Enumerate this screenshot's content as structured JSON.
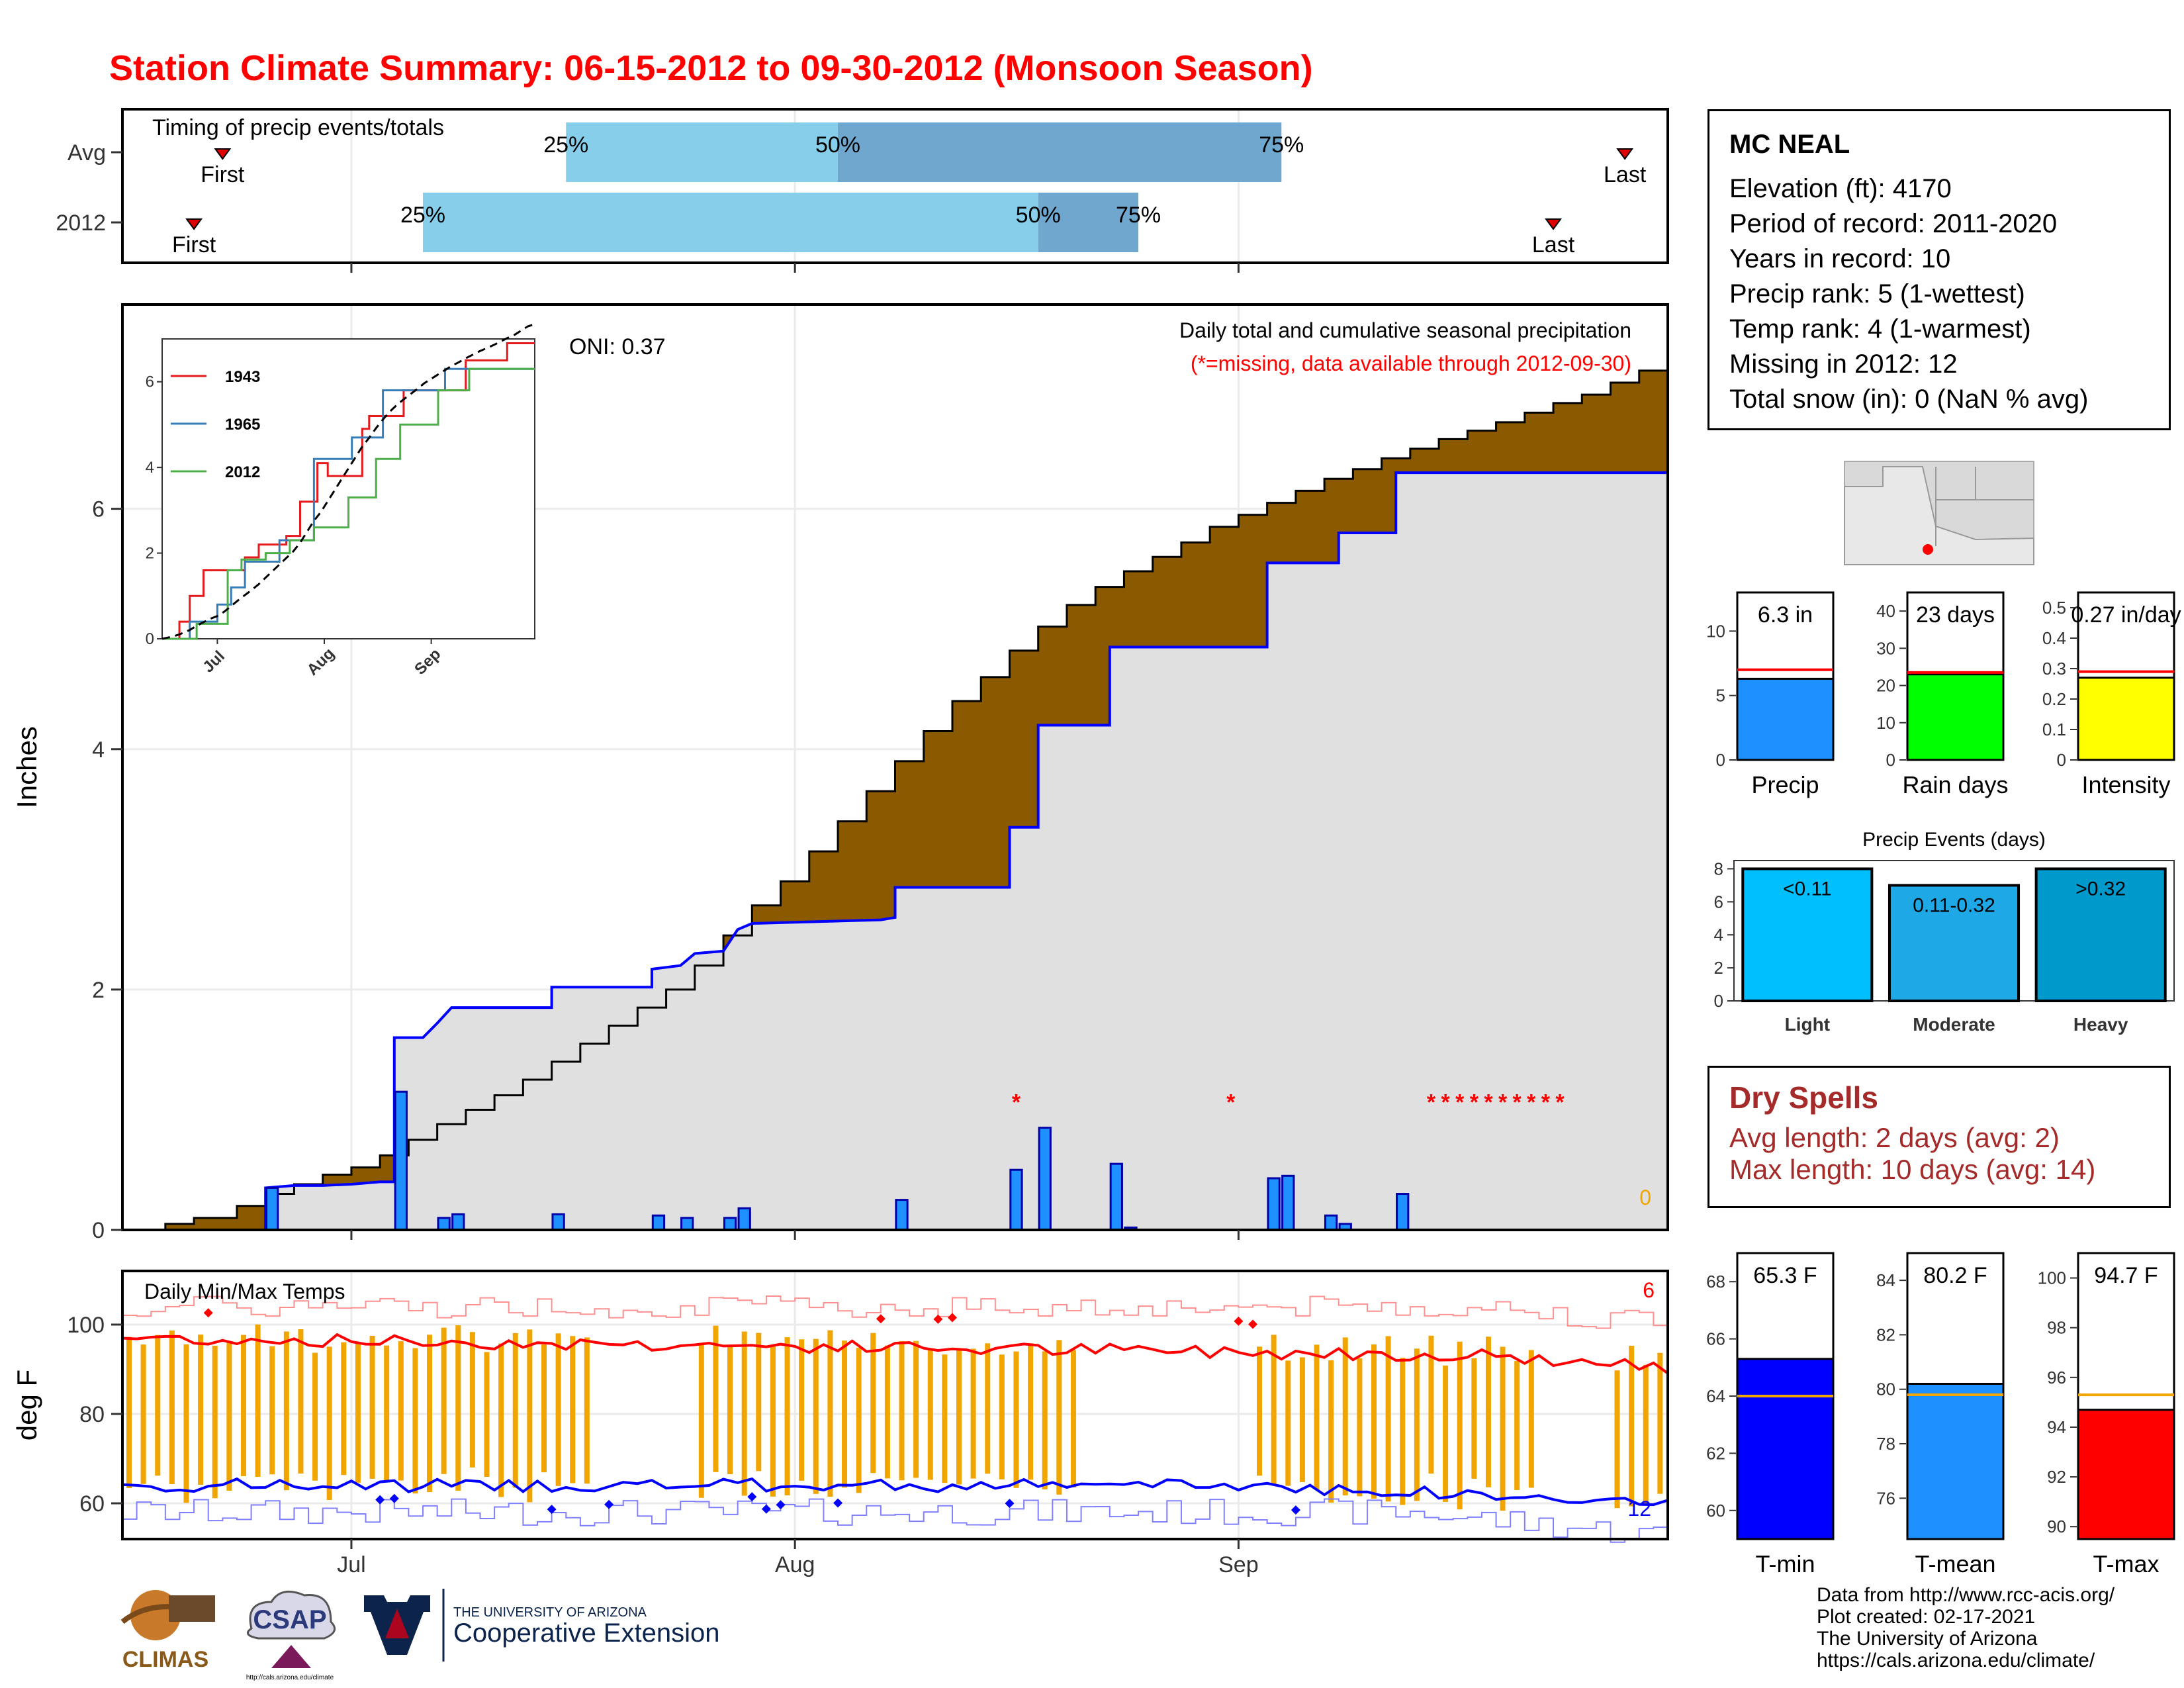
{
  "page": {
    "title": "Station Climate Summary: 06-15-2012 to 09-30-2012 (Monsoon Season)"
  },
  "colors": {
    "title_red": "#ff0000",
    "light_blue": "#87ceeb",
    "mid_blue": "#6fa7cf",
    "gray_fill": "#e0e0e0",
    "brown_fill": "#8b5a00",
    "green_fill": "#008000",
    "bar_blue": "#1e90ff",
    "outline_blue": "#0000ff",
    "orange": "#f0a500",
    "dry_red": "#a52a2a"
  },
  "timing_panel": {
    "label": "Timing of precip events/totals",
    "rows": [
      {
        "name": "Avg",
        "first_label": "First",
        "last_label": "Last",
        "first_day": 7,
        "last_day": 105,
        "q25_day": 31,
        "q50_day": 50,
        "q75_day": 81,
        "q25_label": "25%",
        "q50_label": "50%",
        "q75_label": "75%"
      },
      {
        "name": "2012",
        "first_label": "First",
        "last_label": "Last",
        "first_day": 5,
        "last_day": 100,
        "q25_day": 21,
        "q50_day": 64,
        "q75_day": 71,
        "q25_label": "25%",
        "q50_label": "50%",
        "q75_label": "75%"
      }
    ]
  },
  "chart_data": [
    {
      "type": "area",
      "name": "precip_main",
      "title": "Daily total and cumulative seasonal precipitation",
      "subtitle": "(*=missing, data available through 2012-09-30)",
      "annotation": "ONI: 0.37",
      "ylabel": "Inches",
      "ylim": [
        0,
        7.7
      ],
      "xlim_days": [
        0,
        108
      ],
      "y_ticks": [
        0,
        2,
        4,
        6
      ],
      "x_ticks": [
        {
          "label": "Jul",
          "day": 16
        },
        {
          "label": "Aug",
          "day": 47
        },
        {
          "label": "Sep",
          "day": 78
        }
      ],
      "corner_value": "0",
      "avg_cumulative": [
        [
          0,
          0
        ],
        [
          3,
          0.05
        ],
        [
          5,
          0.1
        ],
        [
          8,
          0.2
        ],
        [
          10,
          0.3
        ],
        [
          12,
          0.38
        ],
        [
          14,
          0.46
        ],
        [
          16,
          0.52
        ],
        [
          18,
          0.62
        ],
        [
          20,
          0.75
        ],
        [
          22,
          0.88
        ],
        [
          24,
          1.0
        ],
        [
          26,
          1.12
        ],
        [
          28,
          1.25
        ],
        [
          30,
          1.4
        ],
        [
          32,
          1.55
        ],
        [
          34,
          1.7
        ],
        [
          36,
          1.85
        ],
        [
          38,
          2.0
        ],
        [
          40,
          2.2
        ],
        [
          42,
          2.45
        ],
        [
          44,
          2.7
        ],
        [
          46,
          2.9
        ],
        [
          48,
          3.15
        ],
        [
          50,
          3.4
        ],
        [
          52,
          3.65
        ],
        [
          54,
          3.9
        ],
        [
          56,
          4.15
        ],
        [
          58,
          4.4
        ],
        [
          60,
          4.6
        ],
        [
          62,
          4.82
        ],
        [
          64,
          5.02
        ],
        [
          66,
          5.2
        ],
        [
          68,
          5.35
        ],
        [
          70,
          5.48
        ],
        [
          72,
          5.6
        ],
        [
          74,
          5.72
        ],
        [
          76,
          5.85
        ],
        [
          78,
          5.95
        ],
        [
          80,
          6.05
        ],
        [
          82,
          6.15
        ],
        [
          84,
          6.25
        ],
        [
          86,
          6.33
        ],
        [
          88,
          6.42
        ],
        [
          90,
          6.5
        ],
        [
          92,
          6.58
        ],
        [
          94,
          6.65
        ],
        [
          96,
          6.72
        ],
        [
          98,
          6.8
        ],
        [
          100,
          6.88
        ],
        [
          102,
          6.95
        ],
        [
          104,
          7.05
        ],
        [
          106,
          7.15
        ],
        [
          108,
          7.2
        ]
      ],
      "obs_cumulative": [
        [
          0,
          0
        ],
        [
          10,
          0
        ],
        [
          10,
          0.35
        ],
        [
          12,
          0.37
        ],
        [
          14,
          0.37
        ],
        [
          16,
          0.38
        ],
        [
          18,
          0.4
        ],
        [
          19,
          0.4
        ],
        [
          19,
          1.6
        ],
        [
          21,
          1.6
        ],
        [
          22,
          1.72
        ],
        [
          23,
          1.85
        ],
        [
          30,
          1.85
        ],
        [
          30,
          2.02
        ],
        [
          37,
          2.02
        ],
        [
          37,
          2.17
        ],
        [
          39,
          2.2
        ],
        [
          40,
          2.3
        ],
        [
          42,
          2.32
        ],
        [
          43,
          2.5
        ],
        [
          44,
          2.55
        ],
        [
          53,
          2.58
        ],
        [
          54,
          2.6
        ],
        [
          54,
          2.85
        ],
        [
          62,
          2.85
        ],
        [
          62,
          3.35
        ],
        [
          64,
          3.35
        ],
        [
          64,
          4.2
        ],
        [
          69,
          4.2
        ],
        [
          69,
          4.85
        ],
        [
          80,
          4.85
        ],
        [
          80,
          5.55
        ],
        [
          85,
          5.55
        ],
        [
          85,
          5.8
        ],
        [
          89,
          5.8
        ],
        [
          89,
          6.3
        ],
        [
          108,
          6.3
        ]
      ],
      "daily_bars": [
        [
          10,
          0.35
        ],
        [
          19,
          1.15
        ],
        [
          22,
          0.1
        ],
        [
          23,
          0.13
        ],
        [
          30,
          0.13
        ],
        [
          37,
          0.12
        ],
        [
          39,
          0.1
        ],
        [
          42,
          0.1
        ],
        [
          43,
          0.18
        ],
        [
          54,
          0.25
        ],
        [
          62,
          0.5
        ],
        [
          64,
          0.85
        ],
        [
          69,
          0.55
        ],
        [
          70,
          0.02
        ],
        [
          80,
          0.43
        ],
        [
          81,
          0.45
        ],
        [
          84,
          0.12
        ],
        [
          85,
          0.05
        ],
        [
          89,
          0.3
        ]
      ],
      "missing_days": [
        62,
        77,
        91,
        92,
        93,
        94,
        95,
        96,
        97,
        98,
        99,
        100
      ]
    },
    {
      "type": "line",
      "name": "inset",
      "series": [
        {
          "name": "1943",
          "color": "#e41a1c"
        },
        {
          "name": "1965",
          "color": "#377eb8"
        },
        {
          "name": "2012",
          "color": "#4daf4a"
        }
      ],
      "ylim": [
        0,
        7
      ],
      "y_ticks": [
        0,
        2,
        4,
        6
      ],
      "x_ticks": [
        {
          "label": "Jul",
          "day": 16
        },
        {
          "label": "Aug",
          "day": 47
        },
        {
          "label": "Sep",
          "day": 78
        }
      ]
    },
    {
      "type": "bar",
      "name": "temp_main",
      "title": "Daily Min/Max Temps",
      "ylabel": "deg F",
      "ylim": [
        52,
        112
      ],
      "y_ticks": [
        60,
        80,
        100
      ],
      "x_ticks": [
        {
          "label": "Jul",
          "day": 16
        },
        {
          "label": "Aug",
          "day": 47
        },
        {
          "label": "Sep",
          "day": 78
        }
      ],
      "corner_top": "6",
      "corner_bottom": "12",
      "missing_days": [
        33,
        34,
        35,
        36,
        37,
        38,
        39,
        67,
        68,
        69,
        70,
        71,
        72,
        73,
        74,
        75,
        76,
        77,
        78,
        99,
        100,
        101,
        102,
        103
      ]
    },
    {
      "type": "bar",
      "name": "precip_summary",
      "panels": [
        {
          "label": "Precip",
          "value": 6.3,
          "avg": 7.0,
          "value_text": "6.3 in",
          "color": "#1e90ff",
          "ylim": [
            0,
            13
          ],
          "ticks": [
            0,
            5,
            10
          ]
        },
        {
          "label": "Rain days",
          "value": 23,
          "avg": 23.5,
          "value_text": "23 days",
          "color": "#00ff00",
          "ylim": [
            0,
            45
          ],
          "ticks": [
            0,
            10,
            20,
            30,
            40
          ]
        },
        {
          "label": "Intensity",
          "value": 0.27,
          "avg": 0.29,
          "value_text": "0.27 in/day",
          "color": "#ffff00",
          "ylim": [
            0,
            0.55
          ],
          "ticks": [
            0.0,
            0.1,
            0.2,
            0.3,
            0.4,
            0.5
          ]
        }
      ]
    },
    {
      "type": "bar",
      "name": "precip_events",
      "title": "Precip Events (days)",
      "categories": [
        "Light",
        "Moderate",
        "Heavy"
      ],
      "values": [
        8,
        7,
        8
      ],
      "range_labels": [
        "<0.11",
        "0.11-0.32",
        ">0.32"
      ],
      "colors": [
        "#00bfff",
        "#1ea8e6",
        "#0099cc"
      ],
      "ylim": [
        0,
        8.5
      ],
      "ticks": [
        0,
        2,
        4,
        6,
        8
      ]
    },
    {
      "type": "bar",
      "name": "temp_summary",
      "panels": [
        {
          "label": "T-min",
          "value": 65.3,
          "avg": 64.0,
          "value_text": "65.3 F",
          "color": "#0000ff",
          "ylim": [
            59,
            69
          ],
          "ticks": [
            60,
            62,
            64,
            66,
            68
          ]
        },
        {
          "label": "T-mean",
          "value": 80.2,
          "avg": 79.8,
          "value_text": "80.2 F",
          "color": "#1e90ff",
          "ylim": [
            74.5,
            85
          ],
          "ticks": [
            76,
            78,
            80,
            82,
            84
          ]
        },
        {
          "label": "T-max",
          "value": 94.7,
          "avg": 95.3,
          "value_text": "94.7 F",
          "color": "#ff0000",
          "ylim": [
            89.5,
            101
          ],
          "ticks": [
            90,
            92,
            94,
            96,
            98,
            100
          ]
        }
      ]
    }
  ],
  "station": {
    "name": "MC NEAL",
    "lines": [
      "Elevation (ft): 4170",
      "Period of record: 2011-2020",
      "Years in record: 10",
      "Precip rank: 5 (1-wettest)",
      "Temp rank: 4 (1-warmest)",
      "Missing in 2012: 12",
      "Total snow (in): 0 (NaN % avg)"
    ]
  },
  "dry_spells": {
    "title": "Dry Spells",
    "avg_length": "Avg length: 2 days (avg: 2)",
    "max_length": "Max length: 10 days (avg: 14)"
  },
  "footer": {
    "lines": [
      "Data from http://www.rcc-acis.org/",
      "Plot created: 02-17-2021",
      "The University of Arizona",
      "https://cals.arizona.edu/climate/"
    ]
  },
  "logos": {
    "climas": "CLIMAS",
    "csap": "CSAP",
    "csap_url": "http://cals.arizona.edu/climate",
    "ua_top": "THE UNIVERSITY OF ARIZONA",
    "ua_bottom": "Cooperative Extension"
  }
}
